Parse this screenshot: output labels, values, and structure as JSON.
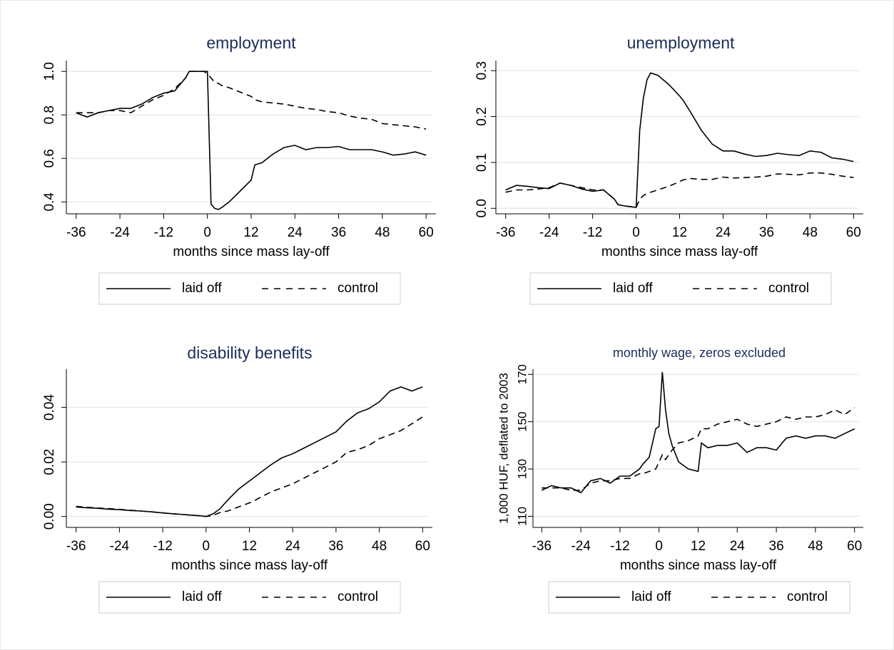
{
  "chart_data": [
    {
      "type": "line",
      "title": "employment",
      "xlabel": "months since mass lay-off",
      "x": [
        -36,
        -33,
        -30,
        -27,
        -24,
        -21,
        -18,
        -15,
        -12,
        -9,
        -6,
        -5,
        -3,
        -1,
        0,
        1,
        2,
        3,
        4,
        6,
        9,
        12,
        13,
        15,
        18,
        21,
        24,
        27,
        30,
        33,
        36,
        39,
        42,
        45,
        48,
        51,
        54,
        57,
        60
      ],
      "series": [
        {
          "name": "laid off",
          "color": "#000000",
          "style": "solid",
          "values": [
            0.81,
            0.79,
            0.81,
            0.82,
            0.83,
            0.83,
            0.85,
            0.88,
            0.9,
            0.91,
            0.97,
            1.0,
            1.0,
            1.0,
            1.0,
            0.39,
            0.37,
            0.365,
            0.375,
            0.4,
            0.45,
            0.5,
            0.57,
            0.58,
            0.62,
            0.65,
            0.66,
            0.64,
            0.65,
            0.65,
            0.655,
            0.64,
            0.64,
            0.64,
            0.63,
            0.615,
            0.62,
            0.63,
            0.615
          ]
        },
        {
          "name": "control",
          "color": "#000000",
          "style": "dashed",
          "values": [
            0.81,
            0.81,
            0.81,
            0.82,
            0.82,
            0.81,
            0.84,
            0.87,
            0.89,
            0.92,
            0.97,
            1.0,
            1.0,
            1.0,
            0.99,
            0.97,
            0.95,
            0.945,
            0.935,
            0.925,
            0.905,
            0.885,
            0.87,
            0.86,
            0.855,
            0.85,
            0.84,
            0.83,
            0.825,
            0.815,
            0.81,
            0.795,
            0.785,
            0.78,
            0.76,
            0.755,
            0.75,
            0.745,
            0.735
          ]
        }
      ],
      "xlim": [
        -38.7,
        62.7
      ],
      "xticks": [
        -36,
        -24,
        -12,
        0,
        12,
        24,
        36,
        48,
        60
      ],
      "ylim": [
        0.345,
        1.05
      ],
      "yticks": [
        {
          "value": 0.4,
          "label": "0.4"
        },
        {
          "value": 0.6,
          "label": "0.6"
        },
        {
          "value": 0.8,
          "label": "0.8"
        },
        {
          "value": 1,
          "label": "1.0"
        }
      ],
      "grid": true
    },
    {
      "type": "line",
      "title": "unemployment",
      "xlabel": "months since mass lay-off",
      "x": [
        -36,
        -33,
        -30,
        -27,
        -24,
        -21,
        -18,
        -15,
        -12,
        -9,
        -6,
        -5,
        -3,
        -1,
        0,
        1,
        2,
        3,
        4,
        6,
        9,
        12,
        13,
        15,
        18,
        21,
        24,
        27,
        30,
        33,
        36,
        39,
        42,
        45,
        48,
        51,
        54,
        57,
        60
      ],
      "series": [
        {
          "name": "laid off",
          "color": "#000000",
          "style": "solid",
          "values": [
            0.04,
            0.05,
            0.048,
            0.045,
            0.043,
            0.055,
            0.05,
            0.042,
            0.037,
            0.04,
            0.02,
            0.008,
            0.005,
            0.003,
            0.002,
            0.17,
            0.24,
            0.28,
            0.295,
            0.29,
            0.27,
            0.245,
            0.235,
            0.21,
            0.17,
            0.14,
            0.125,
            0.125,
            0.118,
            0.113,
            0.115,
            0.12,
            0.117,
            0.115,
            0.125,
            0.122,
            0.11,
            0.107,
            0.102
          ]
        },
        {
          "name": "control",
          "color": "#000000",
          "style": "dashed",
          "values": [
            0.035,
            0.04,
            0.04,
            0.042,
            0.045,
            0.055,
            0.05,
            0.045,
            0.04,
            0.04,
            0.02,
            0.008,
            0.005,
            0.003,
            0.002,
            0.02,
            0.028,
            0.032,
            0.035,
            0.04,
            0.048,
            0.058,
            0.062,
            0.065,
            0.063,
            0.063,
            0.068,
            0.066,
            0.067,
            0.068,
            0.07,
            0.075,
            0.074,
            0.073,
            0.077,
            0.077,
            0.074,
            0.07,
            0.067
          ]
        }
      ],
      "xlim": [
        -38.7,
        62.7
      ],
      "xticks": [
        -36,
        -24,
        -12,
        0,
        12,
        24,
        36,
        48,
        60
      ],
      "ylim": [
        -0.012,
        0.322
      ],
      "yticks": [
        {
          "value": 0,
          "label": "0.0"
        },
        0.1,
        0.2,
        0.3
      ],
      "grid": true
    },
    {
      "type": "line",
      "title": "disability benefits",
      "xlabel": "months since mass lay-off",
      "x": [
        -36,
        -33,
        -30,
        -27,
        -24,
        -21,
        -18,
        -15,
        -12,
        -9,
        -6,
        -5,
        -3,
        -1,
        0,
        1,
        2,
        3,
        4,
        6,
        9,
        12,
        13,
        15,
        18,
        21,
        24,
        27,
        30,
        33,
        36,
        39,
        42,
        45,
        48,
        51,
        54,
        57,
        60
      ],
      "series": [
        {
          "name": "laid off",
          "color": "#000000",
          "style": "solid",
          "values": [
            0.0035,
            0.0032,
            0.003,
            0.0027,
            0.0025,
            0.0022,
            0.002,
            0.0017,
            0.0013,
            0.001,
            0.0007,
            0.0006,
            0.0004,
            0.0002,
            0,
            0.0005,
            0.001,
            0.002,
            0.003,
            0.006,
            0.01,
            0.013,
            0.014,
            0.016,
            0.019,
            0.0215,
            0.023,
            0.025,
            0.027,
            0.029,
            0.031,
            0.035,
            0.038,
            0.0395,
            0.042,
            0.046,
            0.0475,
            0.046,
            0.0475
          ]
        },
        {
          "name": "control",
          "color": "#000000",
          "style": "dashed",
          "values": [
            0.0037,
            0.0034,
            0.0031,
            0.0029,
            0.0026,
            0.0023,
            0.002,
            0.0017,
            0.0013,
            0.001,
            0.0007,
            0.0006,
            0.0004,
            0.0002,
            0,
            0.0002,
            0.0005,
            0.001,
            0.0015,
            0.002,
            0.0035,
            0.005,
            0.0055,
            0.007,
            0.009,
            0.0105,
            0.012,
            0.014,
            0.016,
            0.018,
            0.02,
            0.0235,
            0.0245,
            0.026,
            0.0285,
            0.03,
            0.0315,
            0.034,
            0.0365
          ]
        }
      ],
      "xlim": [
        -38.7,
        62.7
      ],
      "xticks": [
        -36,
        -24,
        -12,
        0,
        12,
        24,
        36,
        48,
        60
      ],
      "ylim": [
        -0.004,
        0.054
      ],
      "yticks": [
        {
          "value": 0,
          "label": "0.00"
        },
        {
          "value": 0.02,
          "label": "0.02"
        },
        {
          "value": 0.04,
          "label": "0.04"
        }
      ],
      "grid": true
    },
    {
      "type": "line",
      "title": "monthly wage, zeros excluded",
      "xlabel": "months since mass lay-off",
      "ylabel": "1,000 HUF, deflated to 2003",
      "x": [
        -36,
        -33,
        -30,
        -27,
        -24,
        -21,
        -18,
        -15,
        -12,
        -9,
        -6,
        -5,
        -3,
        -1,
        0,
        1,
        2,
        3,
        4,
        6,
        9,
        12,
        13,
        15,
        18,
        21,
        24,
        27,
        30,
        33,
        36,
        39,
        42,
        45,
        48,
        51,
        54,
        57,
        60
      ],
      "series": [
        {
          "name": "laid off",
          "color": "#000000",
          "style": "solid",
          "values": [
            121,
            123,
            122,
            122,
            120,
            125,
            126,
            124,
            127,
            127,
            130,
            132,
            135,
            147,
            148,
            171,
            155,
            145,
            140,
            133,
            130,
            129,
            141,
            139,
            140,
            140,
            141,
            137,
            139,
            139,
            138,
            143,
            144,
            143,
            144,
            144,
            143,
            145,
            147
          ]
        },
        {
          "name": "control",
          "color": "#000000",
          "style": "dashed",
          "values": [
            122,
            122,
            122,
            121,
            121,
            124,
            125,
            125,
            126,
            126,
            128,
            128,
            129,
            130,
            133,
            136,
            134,
            136,
            138,
            141,
            142,
            144,
            147,
            147,
            149,
            150,
            151,
            149,
            148,
            149,
            150,
            152,
            151,
            152,
            152,
            153,
            155,
            153,
            156
          ]
        }
      ],
      "xlim": [
        -38.7,
        62.7
      ],
      "xticks": [
        -36,
        -24,
        -12,
        0,
        12,
        24,
        36,
        48,
        60
      ],
      "ylim": [
        105.3,
        172.2
      ],
      "yticks": [
        110,
        130,
        150,
        170
      ],
      "grid": true
    }
  ]
}
